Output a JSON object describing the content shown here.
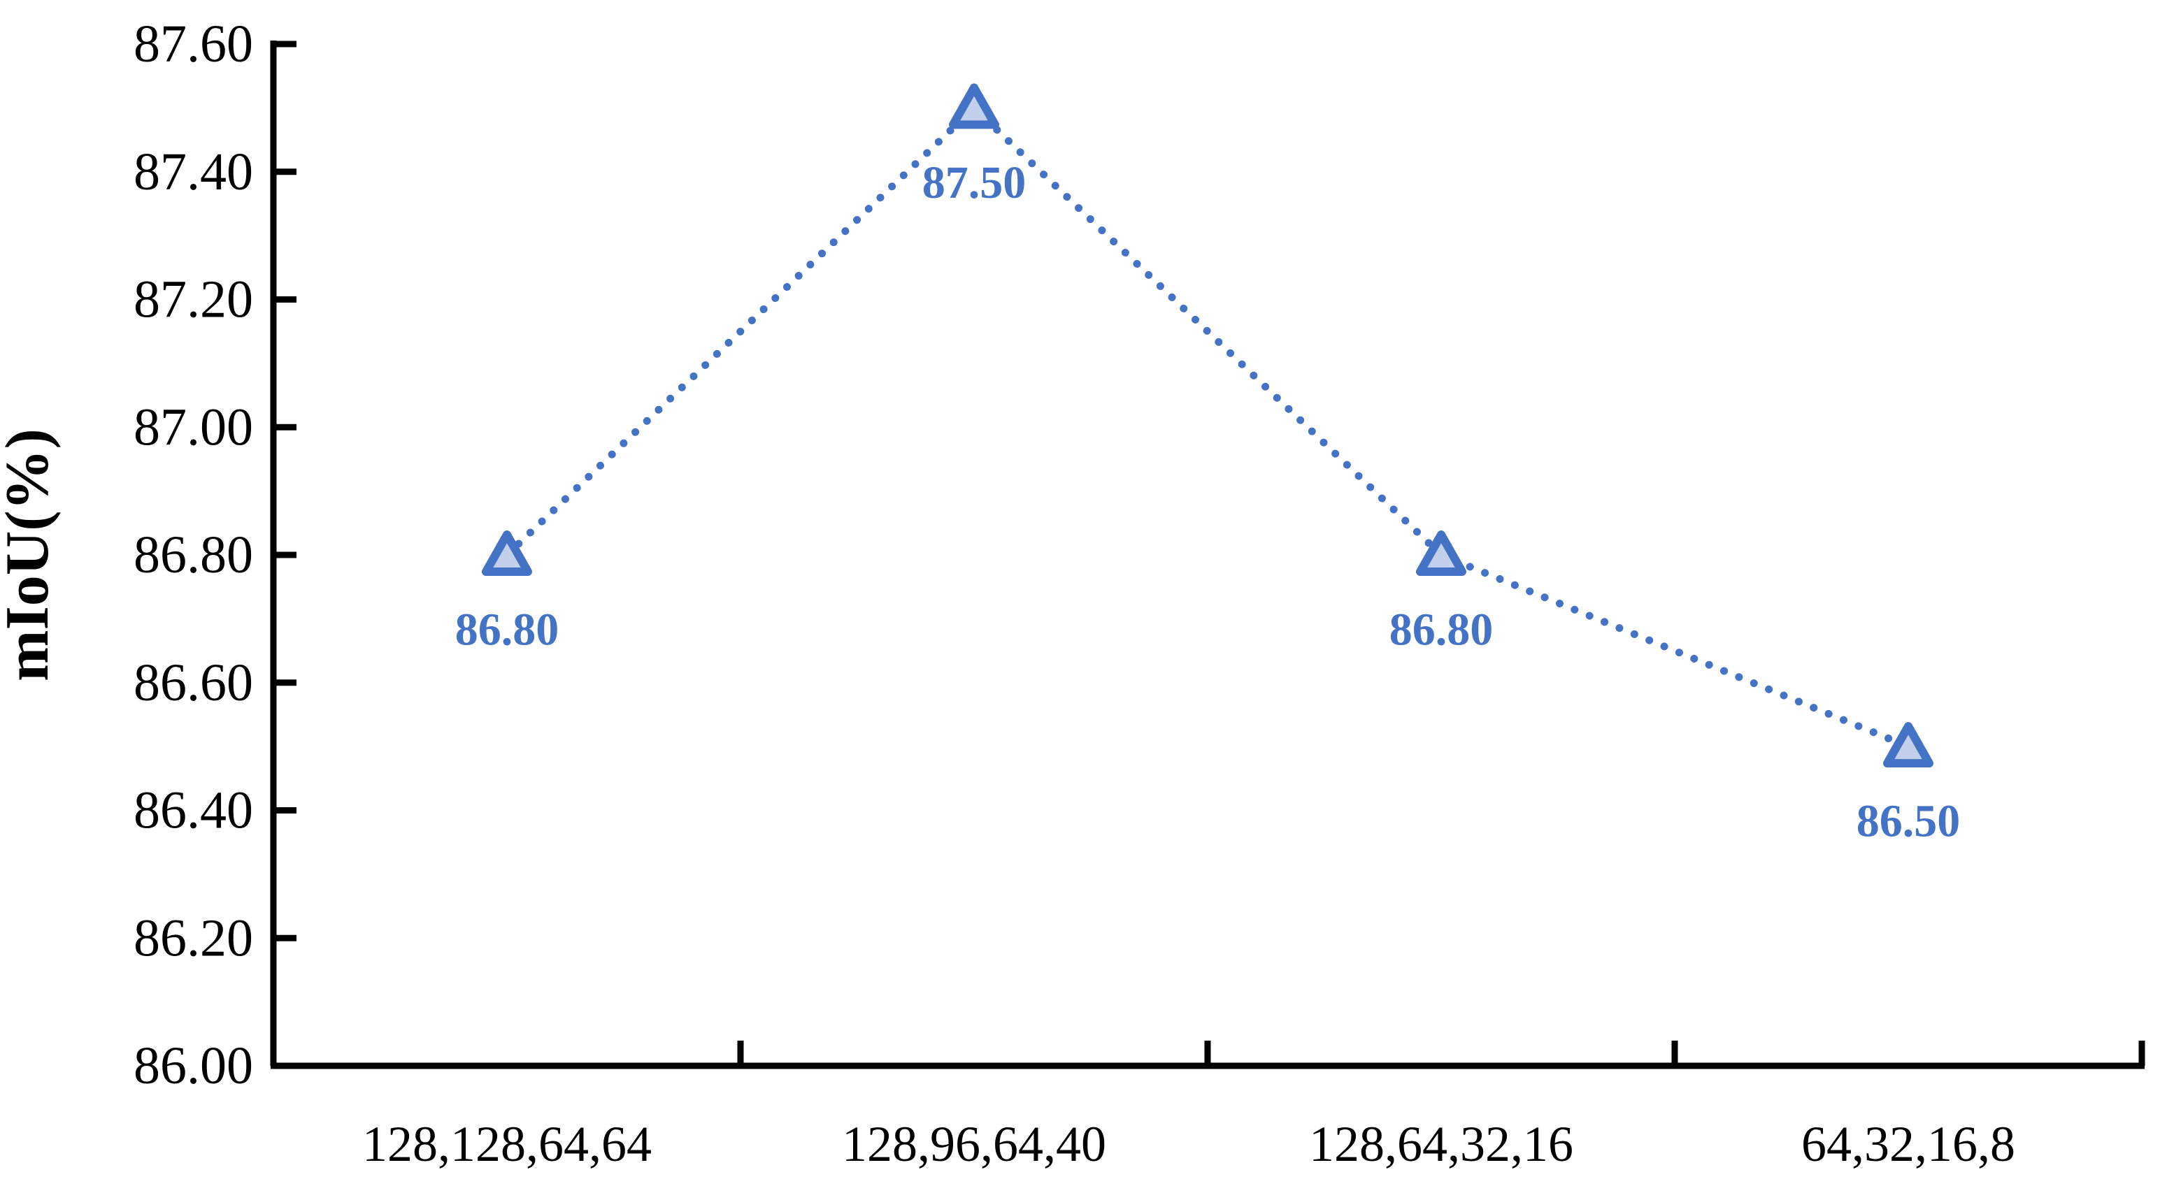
{
  "page": {
    "background": "#ffffff"
  },
  "chart_data": {
    "type": "line",
    "title": "",
    "categories": [
      "128,128,64,64",
      "128,96,64,40",
      "128,64,32,16",
      "64,32,16,8"
    ],
    "series": [
      {
        "name": "mIoU",
        "values": [
          86.8,
          87.5,
          86.8,
          86.5
        ],
        "point_labels": [
          "86.80",
          "87.50",
          "86.80",
          "86.50"
        ]
      }
    ],
    "xlabel": "",
    "ylabel": "mIoU(%)",
    "ylim": [
      86.0,
      87.6
    ],
    "ytick_step": 0.2,
    "ytick_labels": [
      "86.00",
      "86.20",
      "86.40",
      "86.60",
      "86.80",
      "87.00",
      "87.20",
      "87.40",
      "87.60"
    ],
    "grid": false,
    "legend_position": "none",
    "line_style": "dotted",
    "marker": "triangle-up",
    "colors": {
      "line": "#4472C4",
      "marker_fill": "#C3D0EC",
      "marker_stroke": "#4472C4",
      "data_label": "#4472C4",
      "axis": "#000000",
      "tick_label": "#000000"
    }
  }
}
